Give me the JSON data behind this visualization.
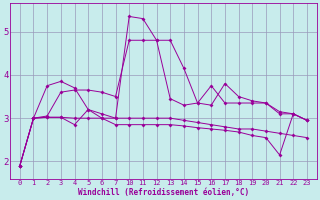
{
  "background_color": "#c8ecec",
  "line_color": "#990099",
  "grid_color": "#9999bb",
  "xlabel": "Windchill (Refroidissement éolien,°C)",
  "x_labels": [
    "0",
    "1",
    "2",
    "3",
    "4",
    "5",
    "6",
    "7",
    "10",
    "11",
    "12",
    "13",
    "14",
    "15",
    "16",
    "17",
    "18",
    "19",
    "20",
    "21",
    "22",
    "23"
  ],
  "ylim": [
    1.6,
    5.65
  ],
  "lines": {
    "line1": [
      1.9,
      3.0,
      3.75,
      3.85,
      3.7,
      3.2,
      3.1,
      3.0,
      5.35,
      5.3,
      4.8,
      4.8,
      4.15,
      3.35,
      3.3,
      3.8,
      3.5,
      3.4,
      3.35,
      3.15,
      3.1,
      2.95
    ],
    "line2": [
      1.9,
      3.0,
      3.05,
      3.6,
      3.65,
      3.65,
      3.6,
      3.5,
      4.8,
      4.8,
      4.8,
      3.45,
      3.3,
      3.35,
      3.75,
      3.35,
      3.35,
      3.35,
      3.35,
      3.1,
      3.1,
      2.95
    ],
    "line3": [
      1.9,
      3.0,
      3.02,
      3.02,
      3.0,
      3.0,
      3.0,
      3.0,
      3.0,
      3.0,
      3.0,
      3.0,
      2.95,
      2.9,
      2.85,
      2.8,
      2.75,
      2.75,
      2.7,
      2.65,
      2.6,
      2.55
    ],
    "line4": [
      1.9,
      3.0,
      3.02,
      3.02,
      2.85,
      3.2,
      3.0,
      2.85,
      2.85,
      2.85,
      2.85,
      2.85,
      2.82,
      2.78,
      2.75,
      2.72,
      2.68,
      2.6,
      2.55,
      2.15,
      3.1,
      2.95
    ]
  },
  "yticks": [
    2,
    3,
    4,
    5
  ]
}
